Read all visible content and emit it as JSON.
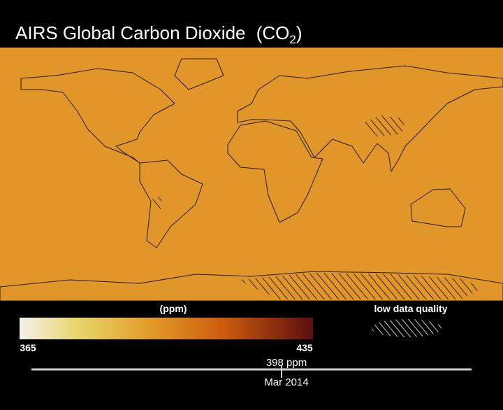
{
  "header": {
    "title": "AIRS Global Carbon Dioxide",
    "formula_open": "(CO",
    "formula_subscript": "2",
    "formula_close": ")"
  },
  "legend": {
    "unit": "(ppm)",
    "min_label": "365",
    "max_label": "435",
    "hatch_label": "low data quality"
  },
  "timeline": {
    "value_label": "398 ppm",
    "date_label": "Mar 2014"
  }
}
